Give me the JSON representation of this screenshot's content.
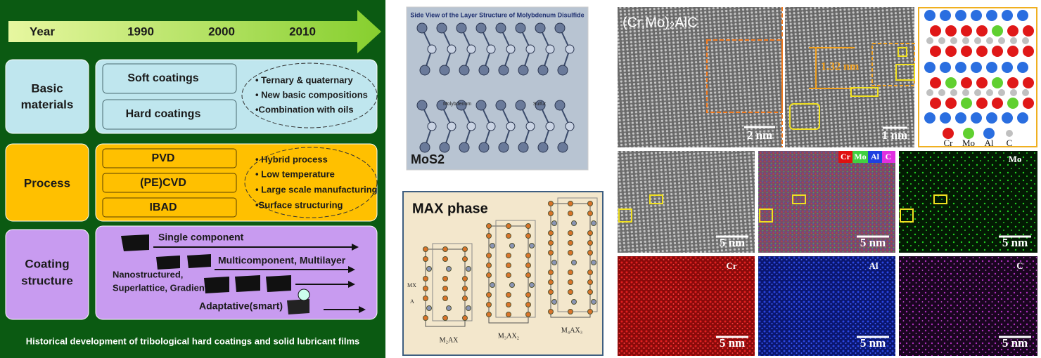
{
  "timeline": {
    "header": {
      "label": "Year",
      "years": [
        "1990",
        "2000",
        "2010"
      ]
    },
    "rows": [
      {
        "label": [
          "Basic",
          "materials"
        ],
        "items": [
          "Soft coatings",
          "Hard coatings"
        ],
        "trends": [
          "• Ternary & quaternary",
          "• New basic compositions",
          "•Combination with oils"
        ]
      },
      {
        "label": [
          "Process"
        ],
        "items": [
          "PVD",
          "(PE)CVD",
          "IBAD"
        ],
        "trends": [
          "• Hybrid process",
          "• Low temperature",
          "• Large scale manufacturing",
          "•Surface structuring"
        ]
      },
      {
        "label": [
          "Coating",
          "structure"
        ],
        "items": [
          "Single component",
          "Multicomponent, Multilayer",
          "Nanostructured,",
          "Superlattice, Gradient",
          "Adaptative(smart)"
        ]
      }
    ],
    "caption": "Historical development of tribological hard coatings and solid lubricant films"
  },
  "mos2": {
    "title": "Side View of the Layer Structure of Molybdenum Disulfide",
    "labels": [
      "Molybdenum",
      "Sulfur"
    ],
    "name": "MoS2"
  },
  "max_phase": {
    "title": "MAX phase",
    "labels": [
      "MX",
      "A"
    ],
    "structures": [
      "M₂AX",
      "M₃AX₂",
      "M₄AX₃"
    ]
  },
  "micrographs": {
    "title": "(Cr,Mo)₂AlC",
    "spacing": "1.32 nm",
    "scale_bars": [
      "2 nm",
      "1 nm",
      "5 nm",
      "5 nm",
      "5 nm",
      "5 nm",
      "5 nm",
      "5 nm"
    ],
    "atom_legend": [
      "Cr",
      "Mo",
      "Al",
      "C"
    ],
    "eds_legend": [
      "Cr",
      "Mo",
      "Al",
      "C"
    ],
    "map_labels": [
      "Mo",
      "Cr",
      "Al",
      "C"
    ]
  }
}
